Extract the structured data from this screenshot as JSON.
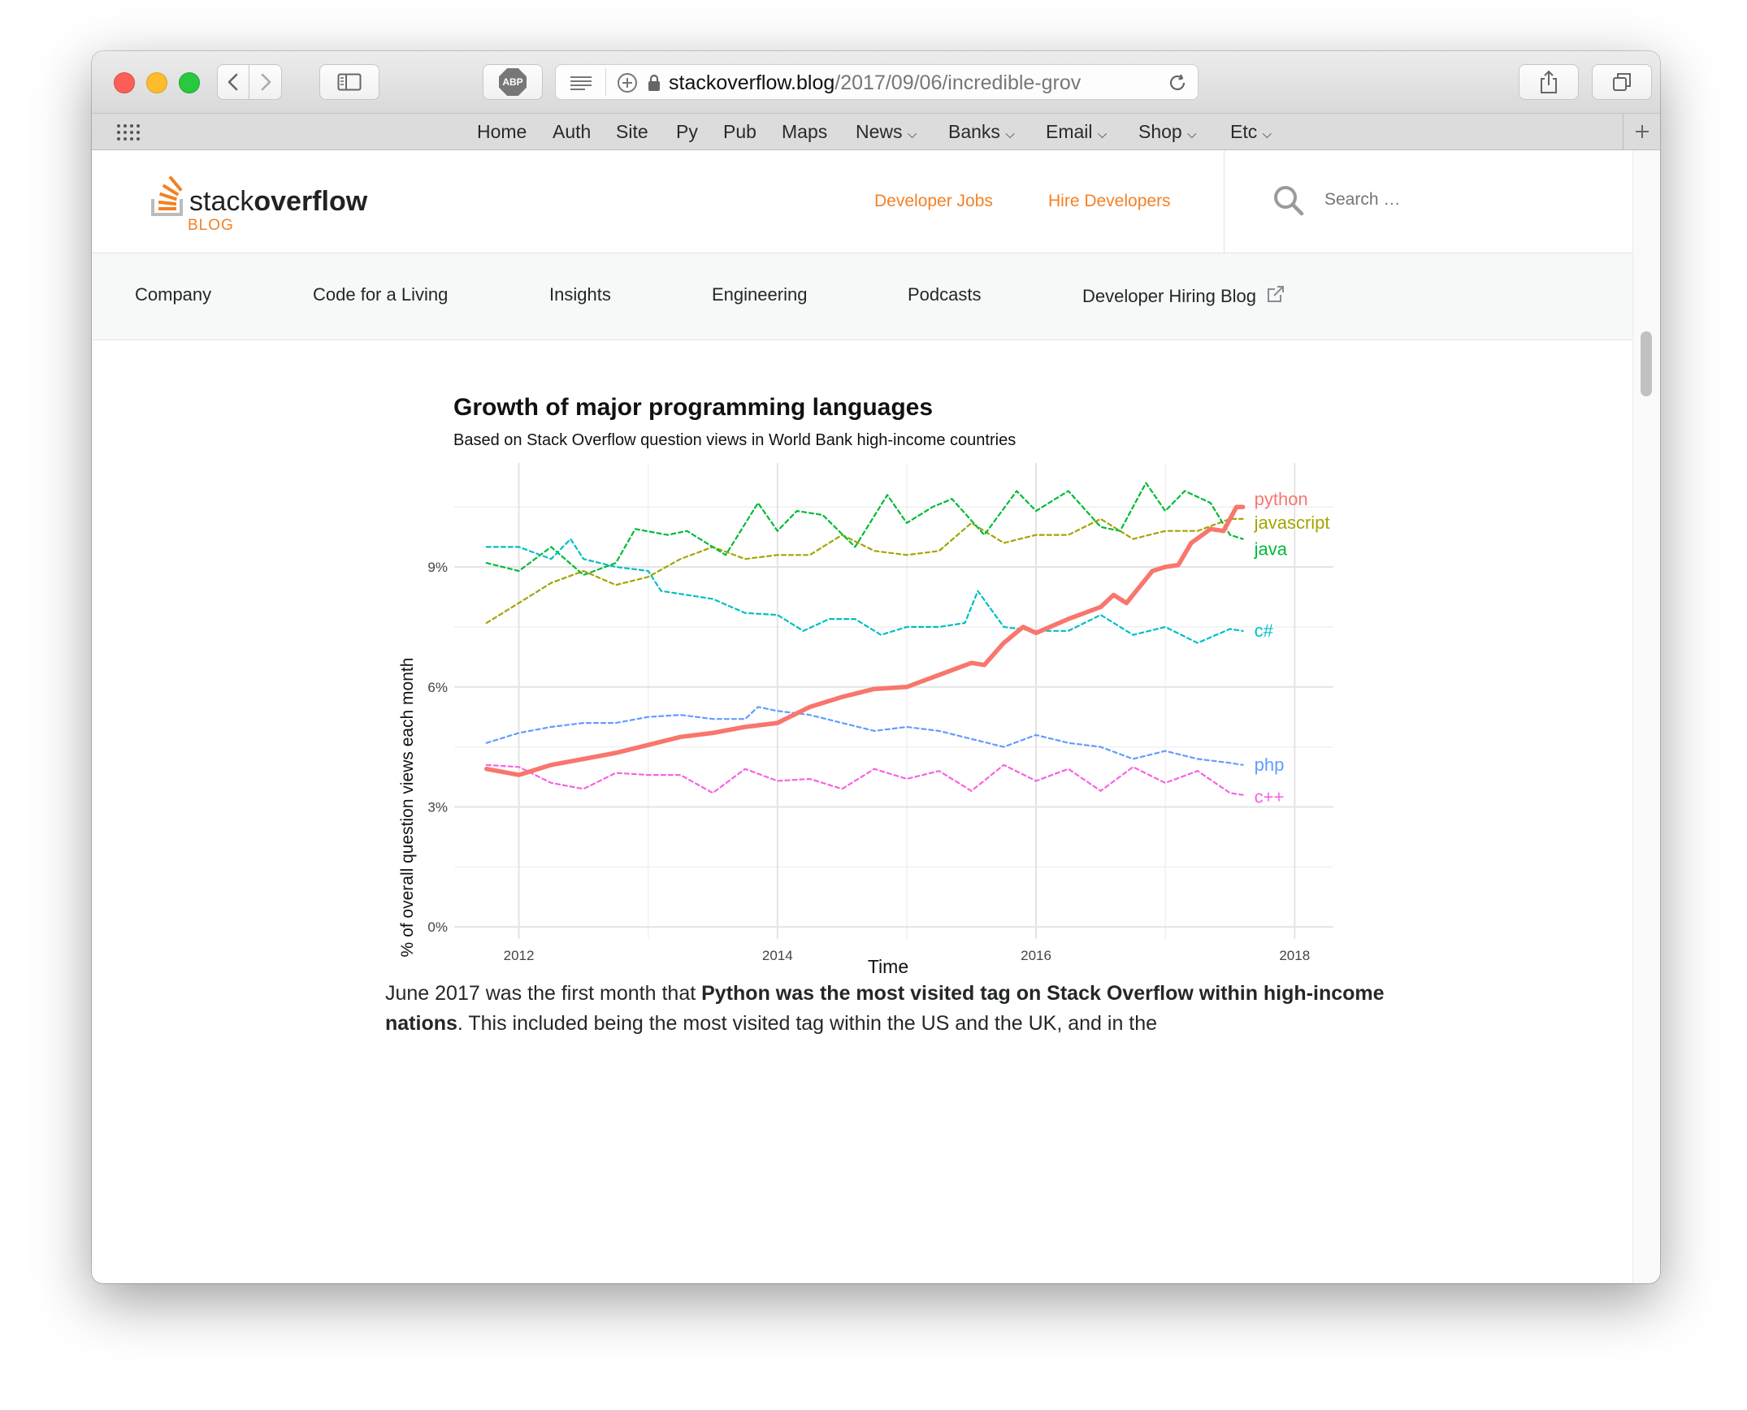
{
  "browser": {
    "url_domain": "stackoverflow.blog",
    "url_path": "/2017/09/06/incredible-grov",
    "adblock_label": "ABP",
    "bookmarks": [
      "Home",
      "Auth",
      "Site",
      "Py",
      "Pub",
      "Maps",
      "News",
      "Banks",
      "Email",
      "Shop",
      "Etc"
    ]
  },
  "site": {
    "logo_text_light": "stack",
    "logo_text_bold": "overflow",
    "logo_sub": "BLOG",
    "header_links": [
      "Developer Jobs",
      "Hire Developers"
    ],
    "search_placeholder": "Search …",
    "nav_items": [
      "Company",
      "Code for a Living",
      "Insights",
      "Engineering",
      "Podcasts",
      "Developer Hiring Blog"
    ]
  },
  "article": {
    "para_part1": "June 2017 was the first month that ",
    "para_bold": "Python was the most visited tag on Stack Overflow within high-income nations",
    "para_part2": ". This included being the most visited tag within the US and the UK, and in the"
  },
  "colors": {
    "accent": "#f48024",
    "python": "#f8766d",
    "javascript": "#a3a500",
    "java": "#00ba38",
    "csharp": "#00bfc4",
    "php": "#619cff",
    "cpp": "#f564e3"
  },
  "chart_data": {
    "type": "line",
    "title": "Growth of major programming languages",
    "subtitle": "Based on Stack Overflow question views in World Bank high-income countries",
    "xlabel": "Time",
    "ylabel": "% of overall question views each month",
    "xlim": [
      2011.5,
      2018.3
    ],
    "ylim": [
      -0.3,
      11.6
    ],
    "x_ticks": [
      2012,
      2014,
      2016,
      2018
    ],
    "y_ticks": [
      0,
      3,
      6,
      9
    ],
    "y_tick_labels": [
      "0%",
      "3%",
      "6%",
      "9%"
    ],
    "series": [
      {
        "name": "python",
        "line": "solid",
        "points": [
          [
            2011.75,
            3.95
          ],
          [
            2012.0,
            3.8
          ],
          [
            2012.25,
            4.05
          ],
          [
            2012.5,
            4.2
          ],
          [
            2012.75,
            4.35
          ],
          [
            2013.0,
            4.55
          ],
          [
            2013.25,
            4.75
          ],
          [
            2013.5,
            4.85
          ],
          [
            2013.75,
            5.0
          ],
          [
            2014.0,
            5.1
          ],
          [
            2014.25,
            5.5
          ],
          [
            2014.5,
            5.75
          ],
          [
            2014.75,
            5.95
          ],
          [
            2015.0,
            6.0
          ],
          [
            2015.25,
            6.3
          ],
          [
            2015.5,
            6.6
          ],
          [
            2015.6,
            6.55
          ],
          [
            2015.75,
            7.1
          ],
          [
            2015.9,
            7.5
          ],
          [
            2016.0,
            7.35
          ],
          [
            2016.25,
            7.7
          ],
          [
            2016.5,
            8.0
          ],
          [
            2016.6,
            8.3
          ],
          [
            2016.7,
            8.1
          ],
          [
            2016.9,
            8.9
          ],
          [
            2017.0,
            9.0
          ],
          [
            2017.1,
            9.05
          ],
          [
            2017.2,
            9.6
          ],
          [
            2017.35,
            9.95
          ],
          [
            2017.45,
            9.9
          ],
          [
            2017.55,
            10.5
          ],
          [
            2017.6,
            10.5
          ]
        ]
      },
      {
        "name": "javascript",
        "line": "dashed",
        "points": [
          [
            2011.75,
            7.6
          ],
          [
            2012.0,
            8.1
          ],
          [
            2012.25,
            8.6
          ],
          [
            2012.5,
            8.9
          ],
          [
            2012.75,
            8.55
          ],
          [
            2013.0,
            8.75
          ],
          [
            2013.25,
            9.2
          ],
          [
            2013.5,
            9.5
          ],
          [
            2013.75,
            9.2
          ],
          [
            2014.0,
            9.3
          ],
          [
            2014.25,
            9.3
          ],
          [
            2014.5,
            9.8
          ],
          [
            2014.75,
            9.4
          ],
          [
            2015.0,
            9.3
          ],
          [
            2015.25,
            9.4
          ],
          [
            2015.5,
            10.1
          ],
          [
            2015.75,
            9.6
          ],
          [
            2016.0,
            9.8
          ],
          [
            2016.25,
            9.8
          ],
          [
            2016.5,
            10.2
          ],
          [
            2016.75,
            9.7
          ],
          [
            2017.0,
            9.9
          ],
          [
            2017.25,
            9.9
          ],
          [
            2017.5,
            10.2
          ],
          [
            2017.6,
            10.2
          ]
        ]
      },
      {
        "name": "java",
        "line": "dashed",
        "points": [
          [
            2011.75,
            9.1
          ],
          [
            2012.0,
            8.9
          ],
          [
            2012.25,
            9.5
          ],
          [
            2012.5,
            8.8
          ],
          [
            2012.75,
            9.1
          ],
          [
            2012.9,
            9.95
          ],
          [
            2013.15,
            9.8
          ],
          [
            2013.3,
            9.9
          ],
          [
            2013.6,
            9.3
          ],
          [
            2013.85,
            10.6
          ],
          [
            2014.0,
            9.9
          ],
          [
            2014.15,
            10.4
          ],
          [
            2014.35,
            10.3
          ],
          [
            2014.6,
            9.5
          ],
          [
            2014.85,
            10.8
          ],
          [
            2015.0,
            10.1
          ],
          [
            2015.2,
            10.5
          ],
          [
            2015.35,
            10.7
          ],
          [
            2015.6,
            9.8
          ],
          [
            2015.85,
            10.9
          ],
          [
            2016.0,
            10.4
          ],
          [
            2016.25,
            10.9
          ],
          [
            2016.5,
            10.0
          ],
          [
            2016.65,
            9.9
          ],
          [
            2016.85,
            11.1
          ],
          [
            2017.0,
            10.4
          ],
          [
            2017.15,
            10.9
          ],
          [
            2017.35,
            10.6
          ],
          [
            2017.5,
            9.8
          ],
          [
            2017.6,
            9.7
          ]
        ]
      },
      {
        "name": "c#",
        "line": "dashed",
        "points": [
          [
            2011.75,
            9.5
          ],
          [
            2012.0,
            9.5
          ],
          [
            2012.25,
            9.2
          ],
          [
            2012.4,
            9.7
          ],
          [
            2012.5,
            9.2
          ],
          [
            2012.75,
            9.0
          ],
          [
            2013.0,
            8.9
          ],
          [
            2013.1,
            8.4
          ],
          [
            2013.3,
            8.3
          ],
          [
            2013.5,
            8.2
          ],
          [
            2013.75,
            7.85
          ],
          [
            2014.0,
            7.8
          ],
          [
            2014.2,
            7.4
          ],
          [
            2014.4,
            7.7
          ],
          [
            2014.6,
            7.7
          ],
          [
            2014.8,
            7.3
          ],
          [
            2015.0,
            7.5
          ],
          [
            2015.25,
            7.5
          ],
          [
            2015.45,
            7.6
          ],
          [
            2015.55,
            8.4
          ],
          [
            2015.75,
            7.5
          ],
          [
            2016.0,
            7.4
          ],
          [
            2016.25,
            7.4
          ],
          [
            2016.5,
            7.8
          ],
          [
            2016.75,
            7.3
          ],
          [
            2017.0,
            7.5
          ],
          [
            2017.25,
            7.1
          ],
          [
            2017.5,
            7.45
          ],
          [
            2017.6,
            7.4
          ]
        ]
      },
      {
        "name": "php",
        "line": "dashed",
        "points": [
          [
            2011.75,
            4.6
          ],
          [
            2012.0,
            4.85
          ],
          [
            2012.25,
            5.0
          ],
          [
            2012.5,
            5.1
          ],
          [
            2012.75,
            5.1
          ],
          [
            2013.0,
            5.25
          ],
          [
            2013.25,
            5.3
          ],
          [
            2013.5,
            5.2
          ],
          [
            2013.75,
            5.2
          ],
          [
            2013.85,
            5.5
          ],
          [
            2014.0,
            5.4
          ],
          [
            2014.25,
            5.3
          ],
          [
            2014.5,
            5.1
          ],
          [
            2014.75,
            4.9
          ],
          [
            2015.0,
            5.0
          ],
          [
            2015.25,
            4.9
          ],
          [
            2015.5,
            4.7
          ],
          [
            2015.75,
            4.5
          ],
          [
            2016.0,
            4.8
          ],
          [
            2016.25,
            4.6
          ],
          [
            2016.5,
            4.5
          ],
          [
            2016.75,
            4.2
          ],
          [
            2017.0,
            4.4
          ],
          [
            2017.25,
            4.2
          ],
          [
            2017.5,
            4.1
          ],
          [
            2017.6,
            4.05
          ]
        ]
      },
      {
        "name": "c++",
        "line": "dashed",
        "points": [
          [
            2011.75,
            4.05
          ],
          [
            2012.0,
            4.0
          ],
          [
            2012.25,
            3.6
          ],
          [
            2012.5,
            3.45
          ],
          [
            2012.75,
            3.85
          ],
          [
            2013.0,
            3.8
          ],
          [
            2013.25,
            3.8
          ],
          [
            2013.5,
            3.35
          ],
          [
            2013.75,
            3.95
          ],
          [
            2014.0,
            3.65
          ],
          [
            2014.25,
            3.7
          ],
          [
            2014.5,
            3.45
          ],
          [
            2014.75,
            3.95
          ],
          [
            2015.0,
            3.7
          ],
          [
            2015.25,
            3.9
          ],
          [
            2015.5,
            3.4
          ],
          [
            2015.75,
            4.05
          ],
          [
            2016.0,
            3.65
          ],
          [
            2016.25,
            3.95
          ],
          [
            2016.5,
            3.4
          ],
          [
            2016.75,
            4.0
          ],
          [
            2017.0,
            3.6
          ],
          [
            2017.25,
            3.9
          ],
          [
            2017.5,
            3.35
          ],
          [
            2017.6,
            3.3
          ]
        ]
      }
    ]
  }
}
